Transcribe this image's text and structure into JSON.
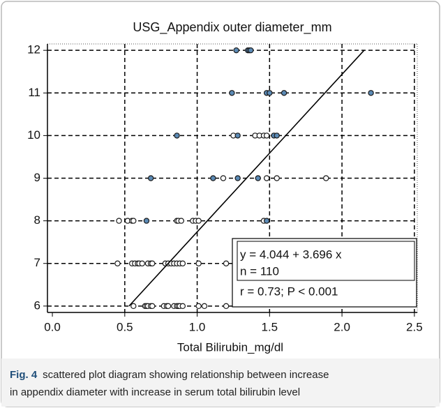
{
  "chart_data": {
    "type": "scatter",
    "title": "USG_Appendix outer diameter_mm",
    "xlabel": "Total Bilirubin_mg/dl",
    "xlim": [
      -0.034,
      2.52
    ],
    "xticks": [
      {
        "value": 0,
        "label": "0.0"
      },
      0.5,
      {
        "value": 1,
        "label": "1.0"
      },
      1.5,
      {
        "value": 2,
        "label": "2.0"
      },
      2.5
    ],
    "ylim": [
      5.85,
      12.15
    ],
    "yticks": [
      6,
      7,
      8,
      9,
      10,
      11,
      12
    ],
    "grid": true,
    "series": [
      {
        "color": "#ffffff",
        "x": [
          1.25,
          1.4,
          1.43,
          1.46,
          1.48,
          1.18,
          1.48,
          1.55,
          1.89,
          0.46,
          0.52,
          0.55,
          0.56,
          0.86,
          0.87,
          0.89,
          0.97,
          0.99,
          1.01,
          1.46,
          0.45,
          0.55,
          0.57,
          0.59,
          0.6,
          0.62,
          0.66,
          0.68,
          0.69,
          0.78,
          0.8,
          0.82,
          0.84,
          0.86,
          0.88,
          0.9,
          1.01,
          1.2,
          0.56,
          0.64,
          0.65,
          0.66,
          0.68,
          0.69,
          0.77,
          0.79,
          0.8,
          0.84,
          0.86,
          0.87,
          0.88,
          0.9,
          1.01,
          1.05,
          1.2
        ],
        "y": [
          10,
          10,
          10,
          10,
          10,
          9,
          9,
          9,
          9,
          8,
          8,
          8,
          8,
          8,
          8,
          8,
          8,
          8,
          8,
          8,
          7,
          7,
          7,
          7,
          7,
          7,
          7,
          7,
          7,
          7,
          7,
          7,
          7,
          7,
          7,
          7,
          7,
          7,
          6,
          6,
          6,
          6,
          6,
          6,
          6,
          6,
          6,
          6,
          6,
          6,
          6,
          6,
          6,
          6,
          6
        ]
      },
      {
        "color": "#5b8ab5",
        "x": [
          1.27,
          1.35,
          1.36,
          1.37,
          1.24,
          1.48,
          1.5,
          1.6,
          2.2,
          0.86,
          1.28,
          1.53,
          1.55,
          0.68,
          1.11,
          1.28,
          1.42,
          0.65,
          1.48
        ],
        "y": [
          12,
          12,
          12,
          12,
          11,
          11,
          11,
          11,
          11,
          10,
          10,
          10,
          10,
          9,
          9,
          9,
          9,
          8,
          8
        ]
      }
    ],
    "fit": {
      "intercept": 4.044,
      "slope": 3.696,
      "x": [
        0.529,
        2.153
      ]
    },
    "annotations": [
      "y = 4.044  +  3.696  x",
      "n = 110",
      "r = 0.73; P < 0.001"
    ]
  },
  "caption": {
    "label": "Fig. 4",
    "lines": [
      "scattered plot diagram showing relationship between increase",
      "in appendix diameter with increase in serum total bilirubin level"
    ]
  }
}
